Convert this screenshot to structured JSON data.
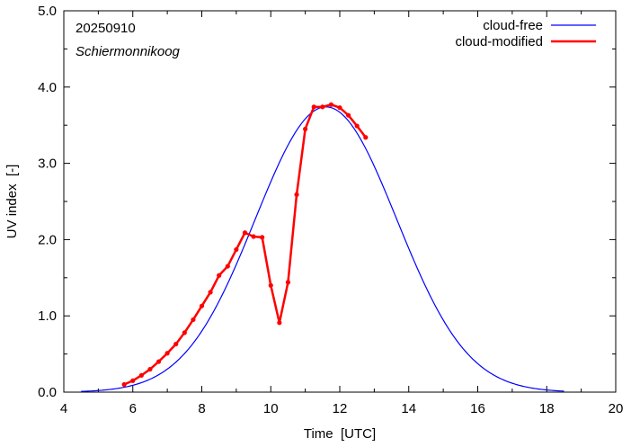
{
  "chart_data": {
    "type": "line",
    "xlabel": "Time  [UTC]",
    "ylabel": "UV index  [-]",
    "xlim": [
      4,
      20
    ],
    "ylim": [
      0,
      5
    ],
    "x_ticks": [
      "4",
      "6",
      "8",
      "10",
      "12",
      "14",
      "16",
      "18",
      "20"
    ],
    "y_ticks": [
      "0.0",
      "1.0",
      "2.0",
      "3.0",
      "4.0",
      "5.0"
    ],
    "annotations": [
      "20250910",
      "Schiermonnikoog"
    ],
    "legend_position": "top-right",
    "series": [
      {
        "name": "cloud-free",
        "color": "#0000ff",
        "curve": {
          "peak_x": 11.6,
          "peak_y": 3.74,
          "sigma": 2.05,
          "x_start": 4.5,
          "x_end": 18.5
        }
      },
      {
        "name": "cloud-modified",
        "color": "#ff0000",
        "x": [
          5.75,
          6.0,
          6.25,
          6.5,
          6.75,
          7.0,
          7.25,
          7.5,
          7.75,
          8.0,
          8.25,
          8.5,
          8.75,
          9.0,
          9.25,
          9.5,
          9.75,
          10.0,
          10.25,
          10.5,
          10.75,
          11.0,
          11.25,
          11.5,
          11.75,
          12.0,
          12.25,
          12.5,
          12.75
        ],
        "y": [
          0.1,
          0.15,
          0.22,
          0.3,
          0.4,
          0.51,
          0.63,
          0.78,
          0.95,
          1.13,
          1.31,
          1.53,
          1.65,
          1.87,
          2.09,
          2.04,
          2.03,
          1.4,
          0.91,
          1.44,
          2.59,
          3.45,
          3.74,
          3.74,
          3.77,
          3.73,
          3.63,
          3.49,
          3.34
        ]
      }
    ]
  }
}
